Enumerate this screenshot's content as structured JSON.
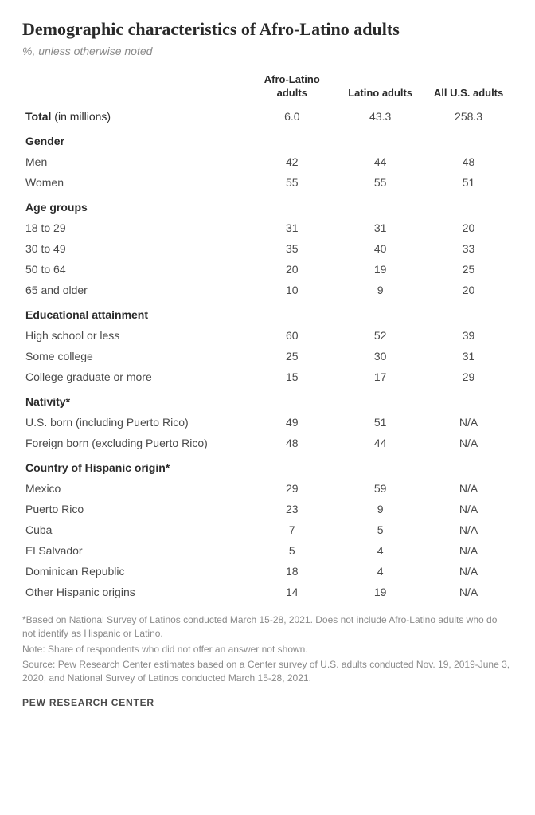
{
  "title": "Demographic characteristics of Afro-Latino adults",
  "subtitle": "%, unless otherwise noted",
  "columns": {
    "col1": "Afro-Latino adults",
    "col2": "Latino adults",
    "col3": "All U.S. adults"
  },
  "total": {
    "label": "Total",
    "paren": " (in millions)",
    "v1": "6.0",
    "v2": "43.3",
    "v3": "258.3"
  },
  "sections": [
    {
      "header": "Gender",
      "rows": [
        {
          "label": "Men",
          "v1": "42",
          "v2": "44",
          "v3": "48"
        },
        {
          "label": "Women",
          "v1": "55",
          "v2": "55",
          "v3": "51"
        }
      ]
    },
    {
      "header": "Age groups",
      "rows": [
        {
          "label": "18 to 29",
          "v1": "31",
          "v2": "31",
          "v3": "20"
        },
        {
          "label": "30 to 49",
          "v1": "35",
          "v2": "40",
          "v3": "33"
        },
        {
          "label": "50 to 64",
          "v1": "20",
          "v2": "19",
          "v3": "25"
        },
        {
          "label": "65 and older",
          "v1": "10",
          "v2": "9",
          "v3": "20"
        }
      ]
    },
    {
      "header": "Educational attainment",
      "rows": [
        {
          "label": "High school or less",
          "v1": "60",
          "v2": "52",
          "v3": "39"
        },
        {
          "label": "Some college",
          "v1": "25",
          "v2": "30",
          "v3": "31"
        },
        {
          "label": "College graduate or more",
          "v1": "15",
          "v2": "17",
          "v3": "29"
        }
      ]
    },
    {
      "header": "Nativity*",
      "rows": [
        {
          "label": "U.S. born (including Puerto Rico)",
          "v1": "49",
          "v2": "51",
          "v3": "N/A"
        },
        {
          "label": "Foreign born (excluding Puerto Rico)",
          "v1": "48",
          "v2": "44",
          "v3": "N/A"
        }
      ]
    },
    {
      "header": "Country of Hispanic origin*",
      "rows": [
        {
          "label": "Mexico",
          "v1": "29",
          "v2": "59",
          "v3": "N/A"
        },
        {
          "label": "Puerto Rico",
          "v1": "23",
          "v2": "9",
          "v3": "N/A"
        },
        {
          "label": "Cuba",
          "v1": "7",
          "v2": "5",
          "v3": "N/A"
        },
        {
          "label": "El Salvador",
          "v1": "5",
          "v2": "4",
          "v3": "N/A"
        },
        {
          "label": "Dominican Republic",
          "v1": "18",
          "v2": "4",
          "v3": "N/A"
        },
        {
          "label": "Other Hispanic origins",
          "v1": "14",
          "v2": "19",
          "v3": "N/A"
        }
      ]
    }
  ],
  "footnotes": {
    "f1": "*Based on National Survey of Latinos conducted March 15-28, 2021. Does not include Afro-Latino adults who do not identify as Hispanic or Latino.",
    "f2": "Note: Share of respondents who did not offer an answer not shown.",
    "f3": "Source: Pew Research Center estimates based on a Center survey of U.S. adults conducted Nov. 19, 2019-June 3, 2020, and National Survey of Latinos conducted March 15-28, 2021."
  },
  "brand": "PEW RESEARCH CENTER",
  "style": {
    "type": "table",
    "background_color": "#ffffff",
    "title_color": "#2a2a2a",
    "title_fontsize": 22,
    "subtitle_color": "#8a8a8a",
    "subtitle_fontsize": 14,
    "body_font": "Arial, Helvetica, sans-serif",
    "title_font": "Georgia, serif",
    "cell_text_color": "#4a4a4a",
    "header_text_color": "#2a2a2a",
    "footnote_color": "#8a8a8a",
    "footnote_fontsize": 12,
    "col_widths_pct": [
      46,
      18,
      18,
      18
    ]
  }
}
